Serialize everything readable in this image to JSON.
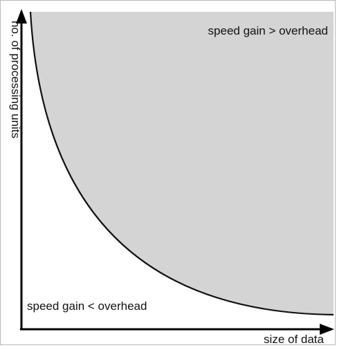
{
  "diagram": {
    "y_axis_label": "no. of processing units",
    "x_axis_label": "size of data",
    "upper_region_label": "speed gain > overhead",
    "lower_region_label": "speed gain < overhead"
  },
  "colors": {
    "region_fill": "#d4d4d4",
    "curve": "#111111",
    "axes": "#000000",
    "border": "#b8b8b8"
  }
}
